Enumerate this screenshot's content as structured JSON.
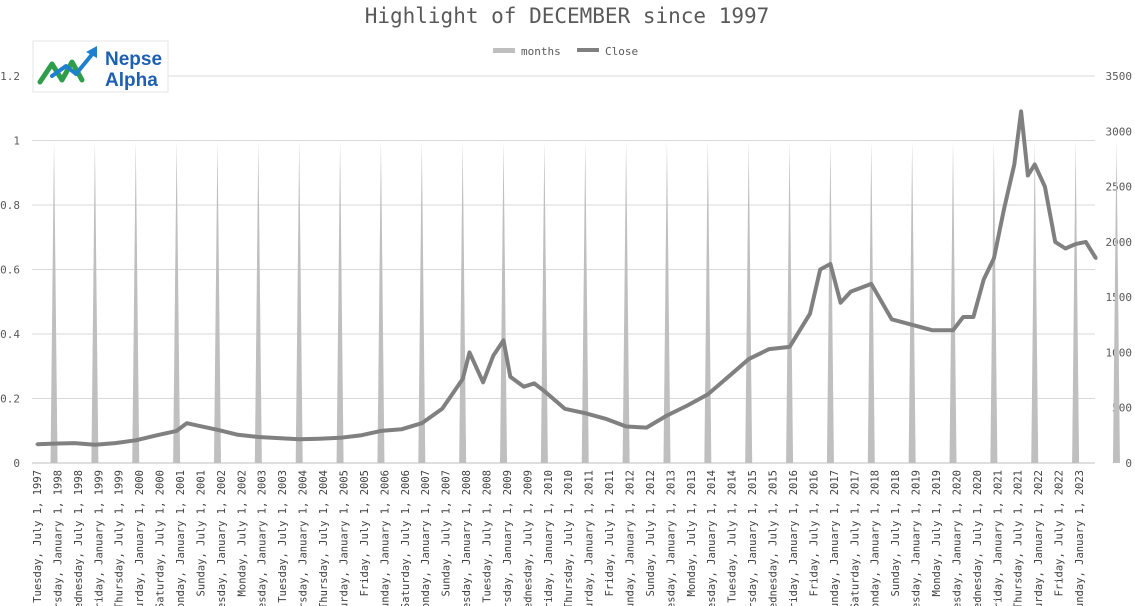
{
  "chart_data": {
    "type": "line",
    "title": "Highlight of DECEMBER since 1997",
    "legend": [
      {
        "name": "months",
        "color": "#bfbfbf"
      },
      {
        "name": "Close",
        "color": "#808080"
      }
    ],
    "legend_position": "top",
    "grid": true,
    "logo": {
      "line1": "Nepse",
      "line2": "Alpha"
    },
    "left_axis": {
      "ylim": [
        0,
        1.2
      ],
      "ticks": [
        "0",
        "0.2",
        "0.4",
        "0.6",
        "0.8",
        "1",
        "1.2"
      ]
    },
    "right_axis": {
      "ylim": [
        0,
        3500
      ],
      "ticks": [
        "0",
        "500",
        "1000",
        "1500",
        "2000",
        "2500",
        "3000",
        "3500"
      ]
    },
    "x_tick_labels": [
      "Tuesday, July 1, 1997",
      "Thursday, January 1, 1998",
      "Wednesday, July 1, 1998",
      "Friday, January 1, 1999",
      "Thursday, July 1, 1999",
      "Saturday, January 1, 2000",
      "Saturday, July 1, 2000",
      "Monday, January 1, 2001",
      "Sunday, July 1, 2001",
      "Tuesday, January 1, 2002",
      "Monday, July 1, 2002",
      "Wednesday, January 1, 2003",
      "Tuesday, July 1, 2003",
      "Thursday, January 1, 2004",
      "Thursday, July 1, 2004",
      "Saturday, January 1, 2005",
      "Friday, July 1, 2005",
      "Sunday, January 1, 2006",
      "Saturday, July 1, 2006",
      "Monday, January 1, 2007",
      "Sunday, July 1, 2007",
      "Tuesday, January 1, 2008",
      "Tuesday, July 1, 2008",
      "Thursday, January 1, 2009",
      "Wednesday, July 1, 2009",
      "Friday, January 1, 2010",
      "Thursday, July 1, 2010",
      "Saturday, January 1, 2011",
      "Friday, July 1, 2011",
      "Sunday, January 1, 2012",
      "Sunday, July 1, 2012",
      "Tuesday, January 1, 2013",
      "Monday, July 1, 2013",
      "Wednesday, January 1, 2014",
      "Tuesday, July 1, 2014",
      "Thursday, January 1, 2015",
      "Wednesday, July 1, 2015",
      "Friday, January 1, 2016",
      "Friday, July 1, 2016",
      "Sunday, January 1, 2017",
      "Saturday, July 1, 2017",
      "Monday, January 1, 2018",
      "Sunday, July 1, 2018",
      "Tuesday, January 1, 2019",
      "Monday, July 1, 2019",
      "Wednesday, January 1, 2020",
      "Wednesday, July 1, 2020",
      "Friday, January 1, 2021",
      "Thursday, July 1, 2021",
      "Saturday, January 1, 2022",
      "Friday, July 1, 2022",
      "Sunday, January 1, 2023"
    ],
    "months_series": {
      "name": "months",
      "axis": "left",
      "spike_value": 1,
      "december_years": [
        1997,
        1998,
        1999,
        2000,
        2001,
        2002,
        2003,
        2004,
        2005,
        2006,
        2007,
        2008,
        2009,
        2010,
        2011,
        2012,
        2013,
        2014,
        2015,
        2016,
        2017,
        2018,
        2019,
        2020,
        2021,
        2022,
        2023
      ]
    },
    "close_series": {
      "name": "Close",
      "axis": "right",
      "points": [
        [
          "1997-07",
          170
        ],
        [
          "1997-12",
          175
        ],
        [
          "1998-06",
          180
        ],
        [
          "1998-12",
          165
        ],
        [
          "1999-06",
          180
        ],
        [
          "1999-12",
          205
        ],
        [
          "2000-06",
          250
        ],
        [
          "2000-12",
          290
        ],
        [
          "2001-03",
          360
        ],
        [
          "2001-06",
          340
        ],
        [
          "2001-12",
          300
        ],
        [
          "2002-06",
          255
        ],
        [
          "2002-12",
          235
        ],
        [
          "2003-06",
          225
        ],
        [
          "2003-12",
          215
        ],
        [
          "2004-06",
          220
        ],
        [
          "2004-12",
          228
        ],
        [
          "2005-06",
          250
        ],
        [
          "2005-12",
          290
        ],
        [
          "2006-06",
          305
        ],
        [
          "2006-12",
          360
        ],
        [
          "2007-06",
          490
        ],
        [
          "2007-12",
          760
        ],
        [
          "2008-02",
          1000
        ],
        [
          "2008-06",
          730
        ],
        [
          "2008-09",
          970
        ],
        [
          "2008-12",
          1110
        ],
        [
          "2009-02",
          780
        ],
        [
          "2009-06",
          690
        ],
        [
          "2009-09",
          720
        ],
        [
          "2009-12",
          650
        ],
        [
          "2010-06",
          490
        ],
        [
          "2010-12",
          450
        ],
        [
          "2011-06",
          400
        ],
        [
          "2011-12",
          330
        ],
        [
          "2012-06",
          320
        ],
        [
          "2012-12",
          430
        ],
        [
          "2013-06",
          520
        ],
        [
          "2013-12",
          620
        ],
        [
          "2014-06",
          780
        ],
        [
          "2014-12",
          940
        ],
        [
          "2015-06",
          1030
        ],
        [
          "2015-12",
          1050
        ],
        [
          "2016-06",
          1350
        ],
        [
          "2016-09",
          1750
        ],
        [
          "2016-12",
          1800
        ],
        [
          "2017-03",
          1450
        ],
        [
          "2017-06",
          1550
        ],
        [
          "2017-12",
          1620
        ],
        [
          "2018-06",
          1300
        ],
        [
          "2018-12",
          1250
        ],
        [
          "2019-06",
          1200
        ],
        [
          "2019-12",
          1200
        ],
        [
          "2020-03",
          1320
        ],
        [
          "2020-06",
          1320
        ],
        [
          "2020-09",
          1660
        ],
        [
          "2020-12",
          1850
        ],
        [
          "2021-03",
          2300
        ],
        [
          "2021-06",
          2700
        ],
        [
          "2021-08",
          3180
        ],
        [
          "2021-10",
          2600
        ],
        [
          "2021-12",
          2700
        ],
        [
          "2022-03",
          2500
        ],
        [
          "2022-06",
          2000
        ],
        [
          "2022-09",
          1940
        ],
        [
          "2022-12",
          1980
        ],
        [
          "2023-03",
          2000
        ],
        [
          "2023-06",
          1850
        ]
      ]
    }
  }
}
